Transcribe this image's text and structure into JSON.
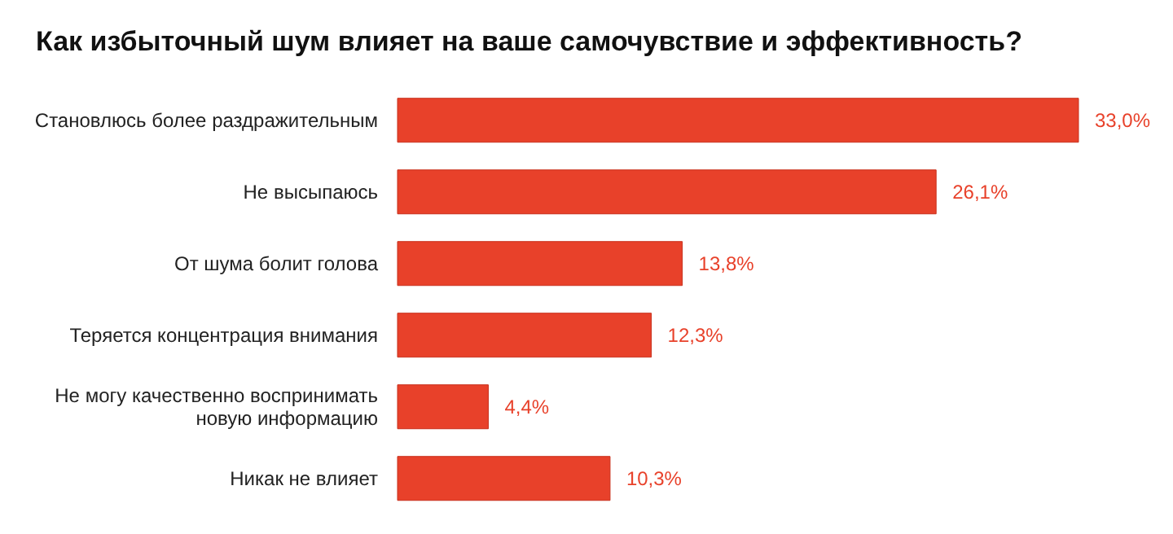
{
  "chart_data": {
    "type": "bar",
    "orientation": "horizontal",
    "title": "Как избыточный шум влияет на ваше самочувствие и эффективность?",
    "categories": [
      "Становлюсь более раздражительным",
      "Не высыпаюсь",
      "От шума болит голова",
      "Теряется концентрация внимания",
      "Не могу качественно воспринимать новую информацию",
      "Никак не влияет"
    ],
    "values": [
      33.0,
      26.1,
      13.8,
      12.3,
      4.4,
      10.3
    ],
    "value_labels": [
      "33,0%",
      "26,1%",
      "13,8%",
      "12,3%",
      "4,4%",
      "10,3%"
    ],
    "color": "#e8412a",
    "grid": false,
    "legend": false
  }
}
